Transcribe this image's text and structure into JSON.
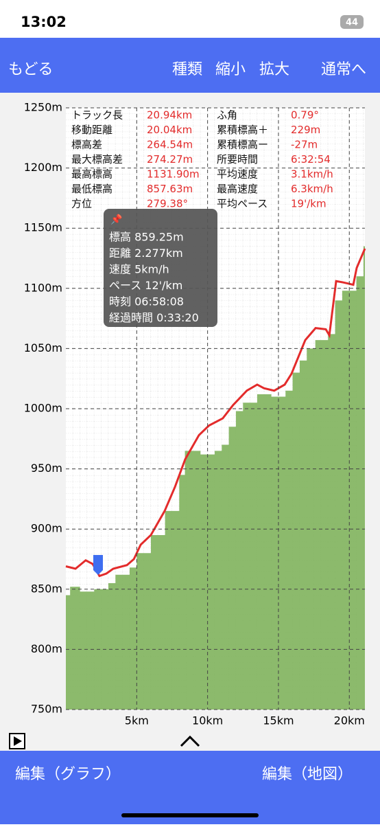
{
  "status": {
    "time": "13:02",
    "battery": "44"
  },
  "nav": {
    "back": "もどる",
    "type": "種類",
    "zoom_out": "縮小",
    "zoom_in": "拡大",
    "normal": "通常へ"
  },
  "stats": {
    "rows": [
      [
        "トラック長",
        "20.94km",
        "ふ角",
        "0.79°"
      ],
      [
        "移動距離",
        "20.04km",
        "累積標高＋",
        "229m"
      ],
      [
        "標高差",
        "264.54m",
        "累積標高ー",
        "-27m"
      ],
      [
        "最大標高差",
        "274.27m",
        "所要時間",
        "6:32:54"
      ],
      [
        "最高標高",
        "1131.90m",
        "平均速度",
        "3.1km/h"
      ],
      [
        "最低標高",
        "857.63m",
        "最高速度",
        "6.3km/h"
      ],
      [
        "方位",
        "279.38°",
        "平均ペース",
        "19'/km"
      ]
    ]
  },
  "tooltip": {
    "lines": [
      "標高 859.25m",
      "距離 2.277km",
      "速度 5km/h",
      "ペース 12'/km",
      "時刻 06:58:08",
      "経過時間 0:33:20"
    ]
  },
  "chart_data": {
    "type": "area-line",
    "xlim": [
      0,
      21.1
    ],
    "ylim": [
      750,
      1250
    ],
    "xticks": [
      {
        "value": 5,
        "label": "5km"
      },
      {
        "value": 10,
        "label": "10km"
      },
      {
        "value": 15,
        "label": "15km"
      },
      {
        "value": 20,
        "label": "20km"
      }
    ],
    "yticks": [
      {
        "value": 750,
        "label": "750m"
      },
      {
        "value": 800,
        "label": "800m"
      },
      {
        "value": 850,
        "label": "850m"
      },
      {
        "value": 900,
        "label": "900m"
      },
      {
        "value": 950,
        "label": "950m"
      },
      {
        "value": 1000,
        "label": "1000m"
      },
      {
        "value": 1050,
        "label": "1050m"
      },
      {
        "value": 1100,
        "label": "1100m"
      },
      {
        "value": 1150,
        "label": "1150m"
      },
      {
        "value": 1200,
        "label": "1200m"
      },
      {
        "value": 1250,
        "label": "1250m"
      }
    ],
    "grid": true,
    "series": [
      {
        "kind": "step-area",
        "color": "#7fb25c",
        "x": [
          0,
          0.3,
          1,
          2,
          3,
          3.5,
          4.5,
          5,
          6,
          7,
          8,
          8.4,
          9.5,
          10.5,
          11,
          11.5,
          12,
          12.5,
          13.5,
          14.5,
          15.5,
          16,
          16.5,
          17,
          17.6,
          18.5,
          19,
          19.5,
          20,
          20.5,
          21
        ],
        "values": [
          845,
          852,
          848,
          850,
          855,
          862,
          868,
          880,
          895,
          915,
          945,
          965,
          962,
          965,
          970,
          985,
          998,
          1005,
          1012,
          1010,
          1015,
          1030,
          1040,
          1050,
          1057,
          1062,
          1090,
          1098,
          1098,
          1110,
          1135
        ]
      },
      {
        "kind": "line",
        "color": "#e32b2b",
        "x": [
          0,
          0.68,
          1.4,
          1.89,
          2.37,
          2.86,
          3.34,
          4.31,
          4.8,
          5.28,
          6.0,
          6.97,
          7.7,
          8.42,
          9.39,
          10.1,
          11.07,
          11.8,
          12.77,
          13.5,
          13.98,
          14.7,
          15.44,
          15.92,
          16.89,
          17.62,
          18.34,
          18.59,
          19.07,
          19.55,
          20.28,
          20.52,
          21.1
        ],
        "values": [
          869,
          867,
          874,
          871,
          861,
          863,
          867,
          870,
          875,
          887,
          895,
          915,
          935,
          958,
          978,
          986,
          992,
          1003,
          1015,
          1020,
          1017,
          1015,
          1020,
          1029,
          1057,
          1067,
          1066,
          1061,
          1106,
          1105,
          1103,
          1117,
          1133
        ]
      }
    ]
  },
  "bottom": {
    "left": "編集（グラフ）",
    "right": "編集（地図）"
  }
}
